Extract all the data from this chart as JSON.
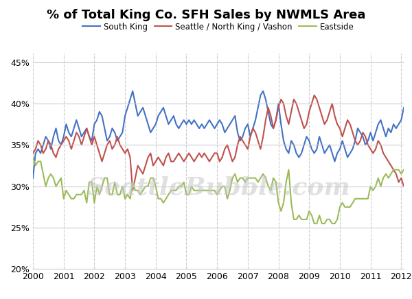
{
  "title": "% of Total King Co. SFH Sales by NWMLS Area",
  "legend_labels": [
    "South King",
    "Seattle / North King / Vashon",
    "Eastside"
  ],
  "line_colors": [
    "#4472C4",
    "#C0504D",
    "#9BBB59"
  ],
  "line_width": 1.5,
  "ylim": [
    0.2,
    0.46
  ],
  "yticks": [
    0.2,
    0.25,
    0.3,
    0.35,
    0.4,
    0.45
  ],
  "ytick_labels": [
    "20%",
    "25%",
    "30%",
    "35%",
    "40%",
    "45%"
  ],
  "xtick_labels": [
    "2000",
    "2001",
    "2002",
    "2003",
    "2004",
    "2005",
    "2006",
    "2007",
    "2008",
    "2009",
    "2010",
    "2011",
    "2012"
  ],
  "watermark": "SeattleBubble.com",
  "background_color": "#ffffff",
  "grid_color": "#cccccc",
  "south_king": [
    0.31,
    0.34,
    0.345,
    0.34,
    0.35,
    0.36,
    0.355,
    0.345,
    0.36,
    0.37,
    0.355,
    0.35,
    0.36,
    0.375,
    0.365,
    0.36,
    0.37,
    0.38,
    0.37,
    0.36,
    0.365,
    0.37,
    0.36,
    0.355,
    0.375,
    0.38,
    0.39,
    0.385,
    0.37,
    0.355,
    0.36,
    0.37,
    0.365,
    0.355,
    0.36,
    0.365,
    0.385,
    0.395,
    0.405,
    0.415,
    0.4,
    0.385,
    0.39,
    0.395,
    0.385,
    0.375,
    0.365,
    0.37,
    0.375,
    0.385,
    0.39,
    0.395,
    0.385,
    0.375,
    0.38,
    0.385,
    0.375,
    0.37,
    0.375,
    0.38,
    0.375,
    0.38,
    0.375,
    0.38,
    0.375,
    0.37,
    0.375,
    0.37,
    0.375,
    0.38,
    0.375,
    0.37,
    0.375,
    0.38,
    0.375,
    0.365,
    0.37,
    0.375,
    0.38,
    0.385,
    0.365,
    0.355,
    0.36,
    0.37,
    0.375,
    0.36,
    0.37,
    0.38,
    0.395,
    0.41,
    0.415,
    0.405,
    0.39,
    0.375,
    0.37,
    0.38,
    0.4,
    0.375,
    0.355,
    0.345,
    0.34,
    0.355,
    0.35,
    0.34,
    0.335,
    0.34,
    0.35,
    0.36,
    0.355,
    0.345,
    0.34,
    0.345,
    0.36,
    0.35,
    0.34,
    0.345,
    0.35,
    0.34,
    0.33,
    0.34,
    0.345,
    0.355,
    0.345,
    0.335,
    0.34,
    0.345,
    0.355,
    0.37,
    0.365,
    0.36,
    0.35,
    0.355,
    0.365,
    0.355,
    0.365,
    0.375,
    0.38,
    0.37,
    0.36,
    0.37,
    0.365,
    0.375,
    0.37,
    0.375,
    0.38,
    0.395
  ],
  "seattle": [
    0.34,
    0.345,
    0.355,
    0.35,
    0.34,
    0.345,
    0.355,
    0.35,
    0.34,
    0.335,
    0.345,
    0.35,
    0.355,
    0.36,
    0.355,
    0.345,
    0.355,
    0.365,
    0.36,
    0.35,
    0.36,
    0.37,
    0.36,
    0.35,
    0.36,
    0.35,
    0.34,
    0.33,
    0.34,
    0.35,
    0.355,
    0.345,
    0.35,
    0.36,
    0.35,
    0.345,
    0.34,
    0.345,
    0.335,
    0.295,
    0.31,
    0.325,
    0.32,
    0.315,
    0.325,
    0.335,
    0.34,
    0.325,
    0.33,
    0.335,
    0.33,
    0.325,
    0.335,
    0.34,
    0.33,
    0.33,
    0.335,
    0.34,
    0.335,
    0.33,
    0.335,
    0.34,
    0.335,
    0.33,
    0.335,
    0.34,
    0.335,
    0.34,
    0.335,
    0.33,
    0.335,
    0.34,
    0.34,
    0.33,
    0.335,
    0.345,
    0.35,
    0.34,
    0.33,
    0.335,
    0.35,
    0.36,
    0.355,
    0.35,
    0.345,
    0.36,
    0.37,
    0.365,
    0.355,
    0.345,
    0.36,
    0.38,
    0.395,
    0.385,
    0.37,
    0.38,
    0.395,
    0.405,
    0.4,
    0.385,
    0.375,
    0.39,
    0.405,
    0.4,
    0.39,
    0.38,
    0.37,
    0.375,
    0.39,
    0.4,
    0.41,
    0.405,
    0.395,
    0.385,
    0.375,
    0.38,
    0.39,
    0.4,
    0.385,
    0.375,
    0.37,
    0.36,
    0.37,
    0.38,
    0.375,
    0.365,
    0.355,
    0.35,
    0.355,
    0.365,
    0.36,
    0.35,
    0.345,
    0.34,
    0.345,
    0.355,
    0.35,
    0.34,
    0.335,
    0.33,
    0.325,
    0.32,
    0.315,
    0.305,
    0.31,
    0.3
  ],
  "eastside": [
    0.335,
    0.325,
    0.33,
    0.33,
    0.315,
    0.3,
    0.31,
    0.315,
    0.31,
    0.3,
    0.305,
    0.31,
    0.285,
    0.295,
    0.29,
    0.285,
    0.285,
    0.29,
    0.29,
    0.29,
    0.295,
    0.28,
    0.305,
    0.305,
    0.28,
    0.3,
    0.29,
    0.3,
    0.31,
    0.31,
    0.29,
    0.29,
    0.305,
    0.29,
    0.29,
    0.3,
    0.285,
    0.29,
    0.285,
    0.305,
    0.295,
    0.295,
    0.29,
    0.295,
    0.3,
    0.3,
    0.31,
    0.31,
    0.3,
    0.285,
    0.285,
    0.28,
    0.285,
    0.29,
    0.295,
    0.295,
    0.295,
    0.3,
    0.3,
    0.305,
    0.29,
    0.29,
    0.3,
    0.295,
    0.295,
    0.295,
    0.295,
    0.295,
    0.295,
    0.295,
    0.295,
    0.295,
    0.29,
    0.295,
    0.3,
    0.3,
    0.285,
    0.295,
    0.31,
    0.315,
    0.305,
    0.31,
    0.31,
    0.305,
    0.31,
    0.31,
    0.31,
    0.31,
    0.305,
    0.31,
    0.315,
    0.31,
    0.3,
    0.295,
    0.31,
    0.305,
    0.28,
    0.27,
    0.28,
    0.305,
    0.32,
    0.28,
    0.26,
    0.26,
    0.265,
    0.26,
    0.26,
    0.26,
    0.27,
    0.265,
    0.255,
    0.255,
    0.265,
    0.255,
    0.255,
    0.26,
    0.26,
    0.255,
    0.255,
    0.26,
    0.275,
    0.28,
    0.275,
    0.275,
    0.275,
    0.28,
    0.285,
    0.285,
    0.285,
    0.285,
    0.285,
    0.285,
    0.3,
    0.295,
    0.3,
    0.31,
    0.3,
    0.31,
    0.315,
    0.31,
    0.315,
    0.32,
    0.32,
    0.32,
    0.315,
    0.32
  ]
}
